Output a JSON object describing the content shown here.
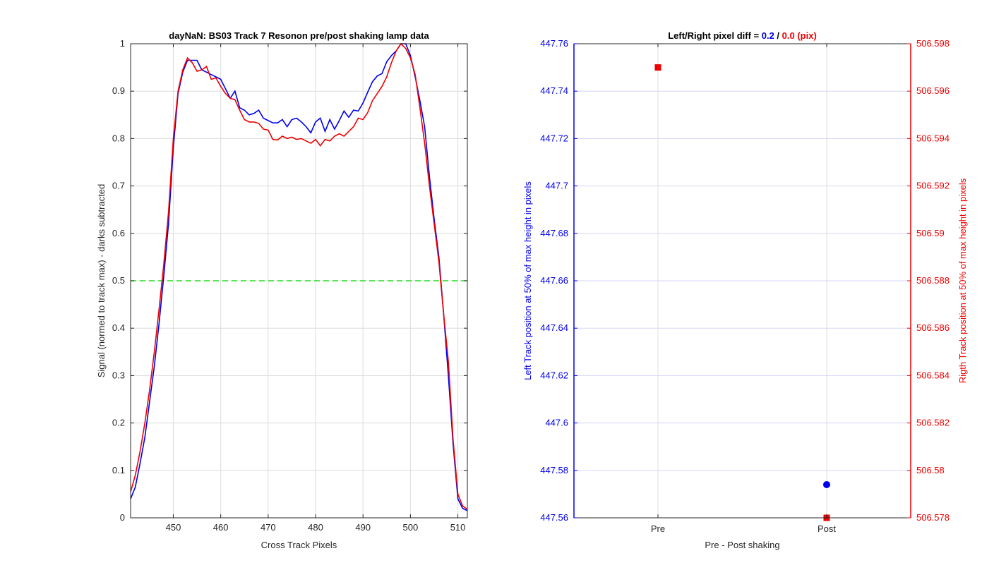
{
  "chart_data": [
    {
      "type": "line",
      "title": "dayNaN: BS03  Track 7 Resonon pre/post shaking lamp data",
      "xlabel": "Cross Track Pixels",
      "ylabel": "Signal (normed to track max) - darks subtracted",
      "xlim": [
        441,
        512
      ],
      "ylim": [
        0,
        1
      ],
      "grid": true,
      "x_ticks": [
        "450",
        "460",
        "470",
        "480",
        "490",
        "500",
        "510"
      ],
      "y_ticks": [
        "0",
        "0.1",
        "0.2",
        "0.3",
        "0.4",
        "0.5",
        "0.6",
        "0.7",
        "0.8",
        "0.9",
        "1"
      ],
      "reference_line": {
        "y": 0.5,
        "color": "#22dd22",
        "style": "dashed"
      },
      "series": [
        {
          "color": "#0000ee",
          "x": [
            441,
            442,
            443,
            444,
            445,
            446,
            447,
            448,
            449,
            450,
            451,
            452,
            453,
            454,
            455,
            456,
            457,
            458,
            459,
            460,
            461,
            462,
            463,
            464,
            465,
            466,
            467,
            468,
            469,
            470,
            471,
            472,
            473,
            474,
            475,
            476,
            477,
            478,
            479,
            480,
            481,
            482,
            483,
            484,
            485,
            486,
            487,
            488,
            489,
            490,
            491,
            492,
            493,
            494,
            495,
            496,
            497,
            498,
            499,
            500,
            501,
            502,
            503,
            504,
            505,
            506,
            507,
            508,
            509,
            510,
            511,
            512
          ],
          "y": [
            0.04,
            0.065,
            0.115,
            0.17,
            0.245,
            0.32,
            0.41,
            0.51,
            0.62,
            0.78,
            0.895,
            0.94,
            0.965,
            0.965,
            0.965,
            0.945,
            0.94,
            0.935,
            0.93,
            0.925,
            0.905,
            0.885,
            0.9,
            0.865,
            0.86,
            0.85,
            0.853,
            0.86,
            0.843,
            0.838,
            0.833,
            0.833,
            0.84,
            0.825,
            0.84,
            0.843,
            0.835,
            0.825,
            0.812,
            0.835,
            0.843,
            0.815,
            0.84,
            0.82,
            0.838,
            0.858,
            0.845,
            0.86,
            0.858,
            0.875,
            0.898,
            0.92,
            0.932,
            0.937,
            0.962,
            0.975,
            0.985,
            1.005,
            1.0,
            0.975,
            0.93,
            0.88,
            0.825,
            0.72,
            0.63,
            0.55,
            0.43,
            0.3,
            0.155,
            0.04,
            0.02,
            0.015
          ]
        },
        {
          "color": "#ee0000",
          "x": [
            441,
            442,
            443,
            444,
            445,
            446,
            447,
            448,
            449,
            450,
            451,
            452,
            453,
            454,
            455,
            456,
            457,
            458,
            459,
            460,
            461,
            462,
            463,
            464,
            465,
            466,
            467,
            468,
            469,
            470,
            471,
            472,
            473,
            474,
            475,
            476,
            477,
            478,
            479,
            480,
            481,
            482,
            483,
            484,
            485,
            486,
            487,
            488,
            489,
            490,
            491,
            492,
            493,
            494,
            495,
            496,
            497,
            498,
            499,
            500,
            501,
            502,
            503,
            504,
            505,
            506,
            507,
            508,
            509,
            510,
            511,
            512
          ],
          "y": [
            0.055,
            0.09,
            0.14,
            0.2,
            0.27,
            0.35,
            0.44,
            0.535,
            0.645,
            0.8,
            0.9,
            0.945,
            0.97,
            0.96,
            0.942,
            0.945,
            0.952,
            0.925,
            0.928,
            0.91,
            0.895,
            0.885,
            0.882,
            0.86,
            0.84,
            0.835,
            0.835,
            0.832,
            0.82,
            0.818,
            0.798,
            0.797,
            0.805,
            0.8,
            0.803,
            0.798,
            0.8,
            0.795,
            0.79,
            0.798,
            0.785,
            0.798,
            0.795,
            0.805,
            0.81,
            0.805,
            0.815,
            0.825,
            0.843,
            0.84,
            0.855,
            0.88,
            0.895,
            0.91,
            0.93,
            0.96,
            0.985,
            1.0,
            0.99,
            0.97,
            0.935,
            0.865,
            0.79,
            0.7,
            0.62,
            0.54,
            0.43,
            0.33,
            0.165,
            0.05,
            0.025,
            0.018
          ]
        }
      ]
    },
    {
      "type": "scatter",
      "title_prefix": "Left/Right pixel diff = ",
      "title_left_value": "0.2",
      "title_separator": " / ",
      "title_right_value": "0.0 (pix)",
      "xlabel": "Pre - Post shaking",
      "ylabel_left": "Left Track position at 50% of max height in pixels",
      "ylabel_right": "Rigth Track position at 50% of max height in pixels",
      "categories": [
        "Pre",
        "Post"
      ],
      "ylim_left": [
        447.56,
        447.76
      ],
      "ylim_right": [
        506.578,
        506.598
      ],
      "y_ticks_left": [
        "447.56",
        "447.58",
        "447.6",
        "447.62",
        "447.64",
        "447.66",
        "447.68",
        "447.7",
        "447.72",
        "447.74",
        "447.76"
      ],
      "y_ticks_right": [
        "506.578",
        "506.58",
        "506.582",
        "506.584",
        "506.586",
        "506.588",
        "506.59",
        "506.592",
        "506.594",
        "506.596",
        "506.598"
      ],
      "grid": true,
      "left_color": "#0000ee",
      "right_color": "#ee0000",
      "series": [
        {
          "axis": "left",
          "marker": "circle",
          "color": "#0000ee",
          "points": [
            {
              "x": "Post",
              "y": 447.574
            }
          ]
        },
        {
          "axis": "right",
          "marker": "square",
          "color": "#ee0000",
          "points": [
            {
              "x": "Pre",
              "y": 506.597
            },
            {
              "x": "Post",
              "y": 506.578
            }
          ]
        }
      ]
    }
  ]
}
